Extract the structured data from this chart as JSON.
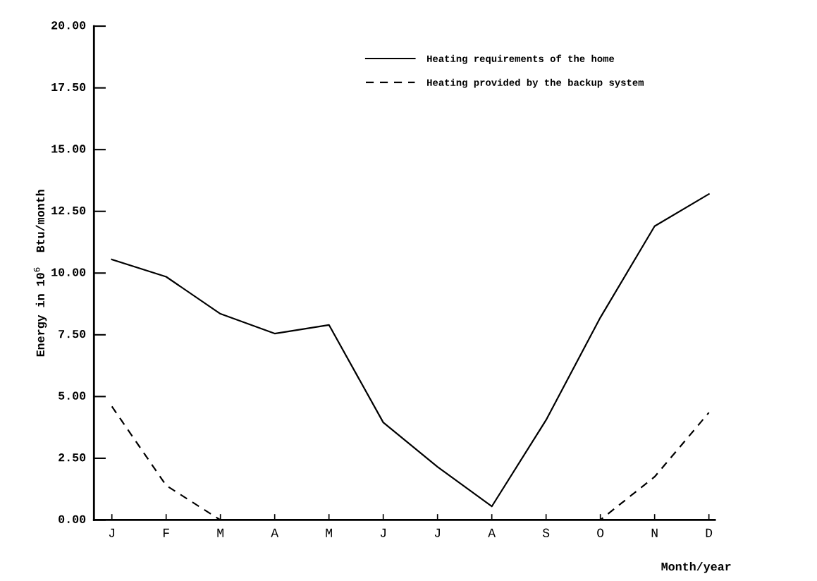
{
  "chart_data": {
    "type": "line",
    "xlabel": "Month/year",
    "ylabel": "Energy in 10$^{6}$  Btu/month",
    "categories": [
      "J",
      "F",
      "M",
      "A",
      "M",
      "J",
      "J",
      "A",
      "S",
      "O",
      "N",
      "D"
    ],
    "series": [
      {
        "name": "Heating requirements of the home",
        "color": "#000000",
        "line_style": "solid",
        "values": [
          10.55,
          9.85,
          8.35,
          7.55,
          7.9,
          3.95,
          2.15,
          0.55,
          4.05,
          8.2,
          11.9,
          13.2
        ]
      },
      {
        "name": "Heating provided by the backup system",
        "color": "#000000",
        "line_style": "dashed",
        "values": [
          4.6,
          1.4,
          0,
          0,
          0,
          0,
          0,
          0,
          0,
          0,
          1.75,
          4.35
        ]
      }
    ],
    "ylim": [
      0,
      20
    ],
    "yticks": [
      {
        "value": 0,
        "label": "0.00"
      },
      {
        "value": 2.5,
        "label": "2.50"
      },
      {
        "value": 5,
        "label": "5.00"
      },
      {
        "value": 7.5,
        "label": "7.50"
      },
      {
        "value": 10,
        "label": "10.00"
      },
      {
        "value": 12.5,
        "label": "12.50"
      },
      {
        "value": 15,
        "label": "15.00"
      },
      {
        "value": 17.5,
        "label": "17.50"
      },
      {
        "value": 20,
        "label": "20.00"
      }
    ],
    "grid": false,
    "legend": "top right",
    "marker": "none"
  }
}
